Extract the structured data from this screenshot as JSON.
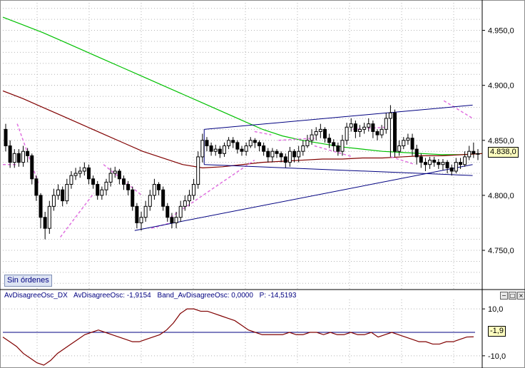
{
  "chart_data": [
    {
      "type": "candlestick",
      "price_axis": {
        "ticks": [
          4750,
          4800,
          4850,
          4900,
          4950
        ],
        "tick_labels": [
          "4.750,0",
          "4.800,0",
          "4.850,0",
          "4.900,0",
          "4.950,0"
        ],
        "ylim": [
          4715,
          4975
        ]
      },
      "last_price": {
        "value": 4838.0,
        "label": "4.838,0"
      },
      "grid": true,
      "series": [
        {
          "name": "candles",
          "color": "#000000",
          "open": [
            4860,
            4845,
            4830,
            4838,
            4830,
            4840,
            4836,
            4815,
            4800,
            4780,
            4770,
            4790,
            4800,
            4805,
            4795,
            4810,
            4818,
            4820,
            4822,
            4825,
            4815,
            4810,
            4800,
            4805,
            4812,
            4820,
            4822,
            4815,
            4810,
            4805,
            4790,
            4775,
            4780,
            4790,
            4800,
            4810,
            4805,
            4790,
            4780,
            4775,
            4780,
            4790,
            4795,
            4800,
            4810,
            4835,
            4850,
            4845,
            4840,
            4842,
            4838,
            4845,
            4850,
            4848,
            4842,
            4840,
            4845,
            4850,
            4848,
            4845,
            4840,
            4835,
            4840,
            4838,
            4835,
            4830,
            4840,
            4835,
            4840,
            4845,
            4850,
            4855,
            4858,
            4860,
            4852,
            4848,
            4845,
            4840,
            4850,
            4862,
            4865,
            4858,
            4860,
            4862,
            4865,
            4858,
            4855,
            4860,
            4870,
            4875,
            4840,
            4845,
            4850,
            4852,
            4842,
            4835,
            4830,
            4828,
            4832,
            4830,
            4828,
            4830,
            4825,
            4822,
            4830,
            4828,
            4835,
            4840,
            4838
          ],
          "close": [
            4845,
            4830,
            4838,
            4830,
            4840,
            4836,
            4815,
            4800,
            4780,
            4770,
            4790,
            4800,
            4805,
            4795,
            4810,
            4818,
            4820,
            4822,
            4825,
            4815,
            4810,
            4800,
            4805,
            4812,
            4820,
            4822,
            4815,
            4810,
            4805,
            4790,
            4775,
            4780,
            4790,
            4800,
            4810,
            4805,
            4790,
            4780,
            4775,
            4780,
            4790,
            4795,
            4800,
            4810,
            4835,
            4850,
            4845,
            4840,
            4842,
            4838,
            4845,
            4850,
            4848,
            4842,
            4840,
            4845,
            4850,
            4848,
            4845,
            4840,
            4835,
            4840,
            4838,
            4835,
            4830,
            4840,
            4835,
            4840,
            4845,
            4850,
            4855,
            4858,
            4860,
            4852,
            4848,
            4845,
            4840,
            4850,
            4862,
            4865,
            4858,
            4860,
            4862,
            4865,
            4858,
            4855,
            4860,
            4870,
            4875,
            4840,
            4845,
            4850,
            4852,
            4842,
            4835,
            4830,
            4828,
            4832,
            4830,
            4828,
            4830,
            4825,
            4822,
            4830,
            4828,
            4835,
            4840,
            4838,
            4838
          ],
          "high": [
            4865,
            4850,
            4842,
            4842,
            4845,
            4843,
            4838,
            4818,
            4802,
            4785,
            4795,
            4806,
            4810,
            4808,
            4815,
            4822,
            4825,
            4826,
            4830,
            4828,
            4818,
            4813,
            4808,
            4815,
            4825,
            4826,
            4824,
            4818,
            4813,
            4808,
            4793,
            4785,
            4795,
            4805,
            4815,
            4812,
            4808,
            4793,
            4784,
            4785,
            4795,
            4800,
            4805,
            4815,
            4840,
            4856,
            4853,
            4848,
            4846,
            4845,
            4848,
            4853,
            4853,
            4850,
            4845,
            4848,
            4853,
            4852,
            4850,
            4848,
            4843,
            4843,
            4842,
            4840,
            4838,
            4844,
            4842,
            4845,
            4850,
            4855,
            4860,
            4862,
            4865,
            4862,
            4856,
            4851,
            4848,
            4855,
            4866,
            4870,
            4868,
            4864,
            4866,
            4870,
            4868,
            4860,
            4864,
            4875,
            4882,
            4878,
            4850,
            4853,
            4856,
            4856,
            4846,
            4838,
            4834,
            4835,
            4835,
            4833,
            4833,
            4832,
            4828,
            4834,
            4834,
            4840,
            4845,
            4848,
            4842
          ],
          "low": [
            4840,
            4825,
            4825,
            4826,
            4826,
            4830,
            4810,
            4795,
            4770,
            4760,
            4765,
            4786,
            4796,
            4790,
            4792,
            4806,
            4814,
            4816,
            4818,
            4810,
            4806,
            4796,
            4796,
            4800,
            4808,
            4816,
            4810,
            4805,
            4800,
            4786,
            4770,
            4768,
            4776,
            4786,
            4796,
            4800,
            4786,
            4776,
            4770,
            4770,
            4776,
            4786,
            4790,
            4796,
            4806,
            4830,
            4840,
            4836,
            4836,
            4834,
            4835,
            4842,
            4843,
            4838,
            4836,
            4836,
            4843,
            4843,
            4840,
            4836,
            4830,
            4830,
            4834,
            4830,
            4825,
            4826,
            4830,
            4830,
            4836,
            4843,
            4846,
            4850,
            4852,
            4848,
            4843,
            4840,
            4836,
            4836,
            4846,
            4858,
            4852,
            4853,
            4856,
            4858,
            4852,
            4850,
            4852,
            4856,
            4835,
            4835,
            4836,
            4842,
            4846,
            4836,
            4828,
            4825,
            4822,
            4824,
            4826,
            4824,
            4823,
            4820,
            4818,
            4820,
            4824,
            4826,
            4832,
            4834,
            4832
          ]
        },
        {
          "name": "ma-long",
          "color": "#00c000",
          "from_index": 0,
          "values": [
            4962,
            4955,
            4948,
            4940,
            4932,
            4924,
            4916,
            4908,
            4900,
            4892,
            4884,
            4876,
            4868,
            4860,
            4854,
            4850,
            4847,
            4844,
            4842,
            4840,
            4839,
            4838,
            4837,
            4837,
            4838
          ]
        },
        {
          "name": "ma-mid",
          "color": "#800000",
          "from_index": 0,
          "values": [
            4895,
            4888,
            4880,
            4872,
            4864,
            4856,
            4848,
            4840,
            4834,
            4828,
            4825,
            4826,
            4828,
            4830,
            4831,
            4832,
            4833,
            4833,
            4834,
            4834,
            4835,
            4836,
            4836,
            4837,
            4838
          ]
        },
        {
          "name": "ma-short-dashed",
          "color": "#e070e0",
          "dashed": true,
          "segments": [
            {
              "x_index": [
                0,
                6
              ],
              "values": [
                4828,
                4828
              ]
            },
            {
              "x_index": [
                6,
                15
              ],
              "values": [
                4865,
                4810
              ]
            },
            {
              "x_index": [
                24,
                38
              ],
              "values": [
                4762,
                4802
              ]
            },
            {
              "x_index": [
                42,
                58
              ],
              "values": [
                4828,
                4800
              ]
            },
            {
              "x_index": [
                62,
                70
              ],
              "values": [
                4770,
                4775
              ]
            },
            {
              "x_index": [
                70,
                105
              ],
              "values": [
                4780,
                4832
              ]
            },
            {
              "x_index": [
                105,
                112
              ],
              "values": [
                4858,
                4855
              ]
            },
            {
              "x_index": [
                115,
                130
              ],
              "values": [
                4850,
                4852
              ]
            },
            {
              "x_index": [
                130,
                146
              ],
              "values": [
                4845,
                4835
              ]
            },
            {
              "x_index": [
                146,
                160
              ],
              "values": [
                4860,
                4862
              ]
            },
            {
              "x_index": [
                162,
                172
              ],
              "values": [
                4835,
                4828
              ]
            },
            {
              "x_index": [
                184,
                196
              ],
              "values": [
                4886,
                4870
              ]
            }
          ]
        },
        {
          "name": "trendlines",
          "color": "#000080",
          "lines": [
            {
              "from": [
                55,
                4768
              ],
              "to": [
                196,
                4828
              ]
            },
            {
              "from": [
                84,
                4860
              ],
              "to": [
                196,
                4882
              ]
            },
            {
              "from": [
                84,
                4828
              ],
              "to": [
                196,
                4818
              ]
            }
          ]
        }
      ]
    },
    {
      "type": "line",
      "title": "AvDisagreeOsc_DX",
      "ylim": [
        -14,
        14
      ],
      "ticks": [
        10,
        -10
      ],
      "tick_labels": [
        "10,0",
        "-10,0"
      ],
      "band": 0,
      "last_value": {
        "value": -1.9,
        "label": "-1,9"
      },
      "series": [
        {
          "name": "AvDisagreeOsc",
          "color": "#800000",
          "values": [
            -2,
            -4,
            -6,
            -9,
            -11,
            -13,
            -14,
            -12,
            -9,
            -7,
            -5,
            -3,
            -1,
            0,
            1,
            0,
            -1,
            -2,
            -3,
            -4,
            -4,
            -3,
            -2,
            -1,
            1,
            4,
            8,
            10,
            10,
            9,
            9,
            8,
            7,
            6,
            5,
            3,
            1,
            0,
            -1,
            -1,
            -1,
            -1,
            0,
            -1,
            -1,
            0,
            0,
            -1,
            0,
            -1,
            -1,
            0,
            -1,
            -1,
            0,
            -2,
            -1,
            0,
            -1,
            -2,
            -3,
            -4,
            -4,
            -5,
            -5,
            -4,
            -4,
            -3,
            -2,
            -1.9
          ]
        }
      ],
      "legend": {
        "title": "AvDisagreeOsc_DX",
        "osc": "AvDisagreeOsc: -1,9154",
        "band": "Band_AvDisagreeOsc: 0,0000",
        "p": "P: -14,5193"
      }
    }
  ],
  "ui": {
    "orders_label": "Sin órdenes",
    "pane_buttons": [
      "−",
      "□",
      "×"
    ]
  }
}
